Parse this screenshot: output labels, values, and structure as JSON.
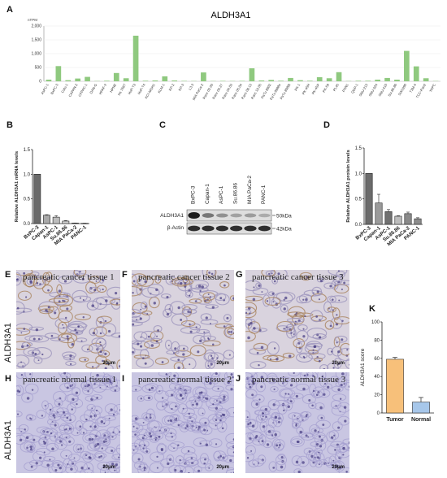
{
  "panels": {
    "A": "A",
    "B": "B",
    "C": "C",
    "D": "D",
    "E": "E",
    "F": "F",
    "G": "G",
    "H": "H",
    "I": "I",
    "J": "J",
    "K": "K"
  },
  "row_label": "ALDH3A1",
  "scale_bar": "20μm",
  "histology": {
    "E": "pancreatic cancer tissue 1",
    "F": "pancreatic cancer tissue 2",
    "G": "pancreatic cancer tissue 3",
    "H": "pancreatic normal tissue 1",
    "I": "pancreatic normal tissue 2",
    "J": "pancreatic normal tissue 3"
  },
  "western": {
    "lanes": [
      "BxPC-3",
      "Capan-1",
      "AsPC-1",
      "Su.86.86",
      "MIA PaCa-2",
      "PANC-1"
    ],
    "rows": [
      "ALDH3A1",
      "β-Actin"
    ],
    "markers": [
      "50kDa",
      "42kDa"
    ],
    "band_intensity": [
      1.0,
      0.45,
      0.28,
      0.18,
      0.22,
      0.12
    ]
  },
  "colors": {
    "green": "#8fc97f",
    "gray_dark": "#6b6b6b",
    "orange": "#f7c07a",
    "blue": "#a7c7ea"
  },
  "chart_data": [
    {
      "type": "bar",
      "title": "ALDH3A1",
      "ylabel": "nTPM",
      "ylim": [
        0,
        2000
      ],
      "yticks": [
        "0",
        "500",
        "1,000",
        "1,500",
        "2,000"
      ],
      "categories": [
        "AsPC-1",
        "BxPC-3",
        "Calu-1",
        "CAPAN-2",
        "CFPAC-1",
        "DAN-G",
        "HPAF-II",
        "HPNE",
        "Hs 766T",
        "HuP-T3",
        "HuP-T4",
        "KCI-MOH1",
        "KLM-1",
        "KP-2",
        "KP-3",
        "L3.3",
        "MIA PaCa-2",
        "Panc 02.03",
        "Panc 03.27",
        "Panc 04.03",
        "Panc 05.04",
        "Panc 08.13",
        "Panc 10.05",
        "PaTu 8902",
        "PaTu 8988s",
        "PaTu 8988t",
        "PK-1",
        "PK-45H",
        "PK-45P",
        "PK-59",
        "PL45",
        "PSN1",
        "QGP-1",
        "SNU-213",
        "SNU-324",
        "SNU-410",
        "SU.86.86",
        "SW1990",
        "T3M-4",
        "TCC-Pan2",
        "YAPC"
      ],
      "values": [
        60,
        550,
        40,
        100,
        160,
        10,
        20,
        300,
        110,
        1650,
        20,
        30,
        180,
        30,
        15,
        10,
        320,
        10,
        15,
        10,
        15,
        470,
        30,
        50,
        20,
        120,
        40,
        20,
        150,
        110,
        330,
        10,
        20,
        20,
        60,
        120,
        60,
        1100,
        540,
        110,
        10
      ]
    },
    {
      "type": "bar",
      "ylabel": "Relative ALDH3A1 mRNA levels",
      "ylim": [
        0,
        1.5
      ],
      "yticks": [
        "0.0",
        "0.5",
        "1.0",
        "1.5"
      ],
      "categories": [
        "BxPC-3",
        "Capan-1",
        "AsPC-1",
        "Su.86.86",
        "MIA PaCa-2",
        "PANC-1"
      ],
      "values": [
        1.0,
        0.17,
        0.13,
        0.05,
        0.01,
        0.005
      ],
      "errors": [
        0.0,
        0.01,
        0.03,
        0.01,
        0.002,
        0.002
      ]
    },
    {
      "type": "bar",
      "ylabel": "Relative ALDH3A1 protein levels",
      "ylim": [
        0,
        1.5
      ],
      "yticks": [
        "0.0",
        "0.5",
        "1.0",
        "1.5"
      ],
      "categories": [
        "BxPC-3",
        "Capan-1",
        "AsPC-1",
        "Su.86.86",
        "MIA PaCa-2",
        "PANC-1"
      ],
      "values": [
        1.0,
        0.42,
        0.25,
        0.16,
        0.21,
        0.11
      ],
      "errors": [
        0.0,
        0.17,
        0.04,
        0.01,
        0.03,
        0.02
      ]
    },
    {
      "type": "bar",
      "ylabel": "ALDH3A1 score",
      "ylim": [
        0,
        100
      ],
      "yticks": [
        "0",
        "20",
        "40",
        "60",
        "80",
        "100"
      ],
      "categories": [
        "Tumor",
        "Normal"
      ],
      "values": [
        59,
        12
      ],
      "errors": [
        2,
        5
      ]
    }
  ]
}
